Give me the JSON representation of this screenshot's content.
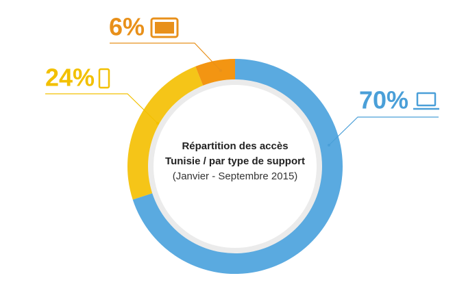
{
  "chart_data": {
    "type": "donut",
    "title": [
      "Répartition des accès",
      "Tunisie / par type de support"
    ],
    "subtitle": "(Janvier - Septembre 2015)",
    "values": [
      70,
      24,
      6
    ],
    "value_labels": [
      "70%",
      "24%",
      "6%"
    ],
    "colors": [
      "#5aaae0",
      "#f5c518",
      "#f39512"
    ],
    "label_colors": [
      "#4a9fd8",
      "#f2c000",
      "#e8901a"
    ]
  }
}
